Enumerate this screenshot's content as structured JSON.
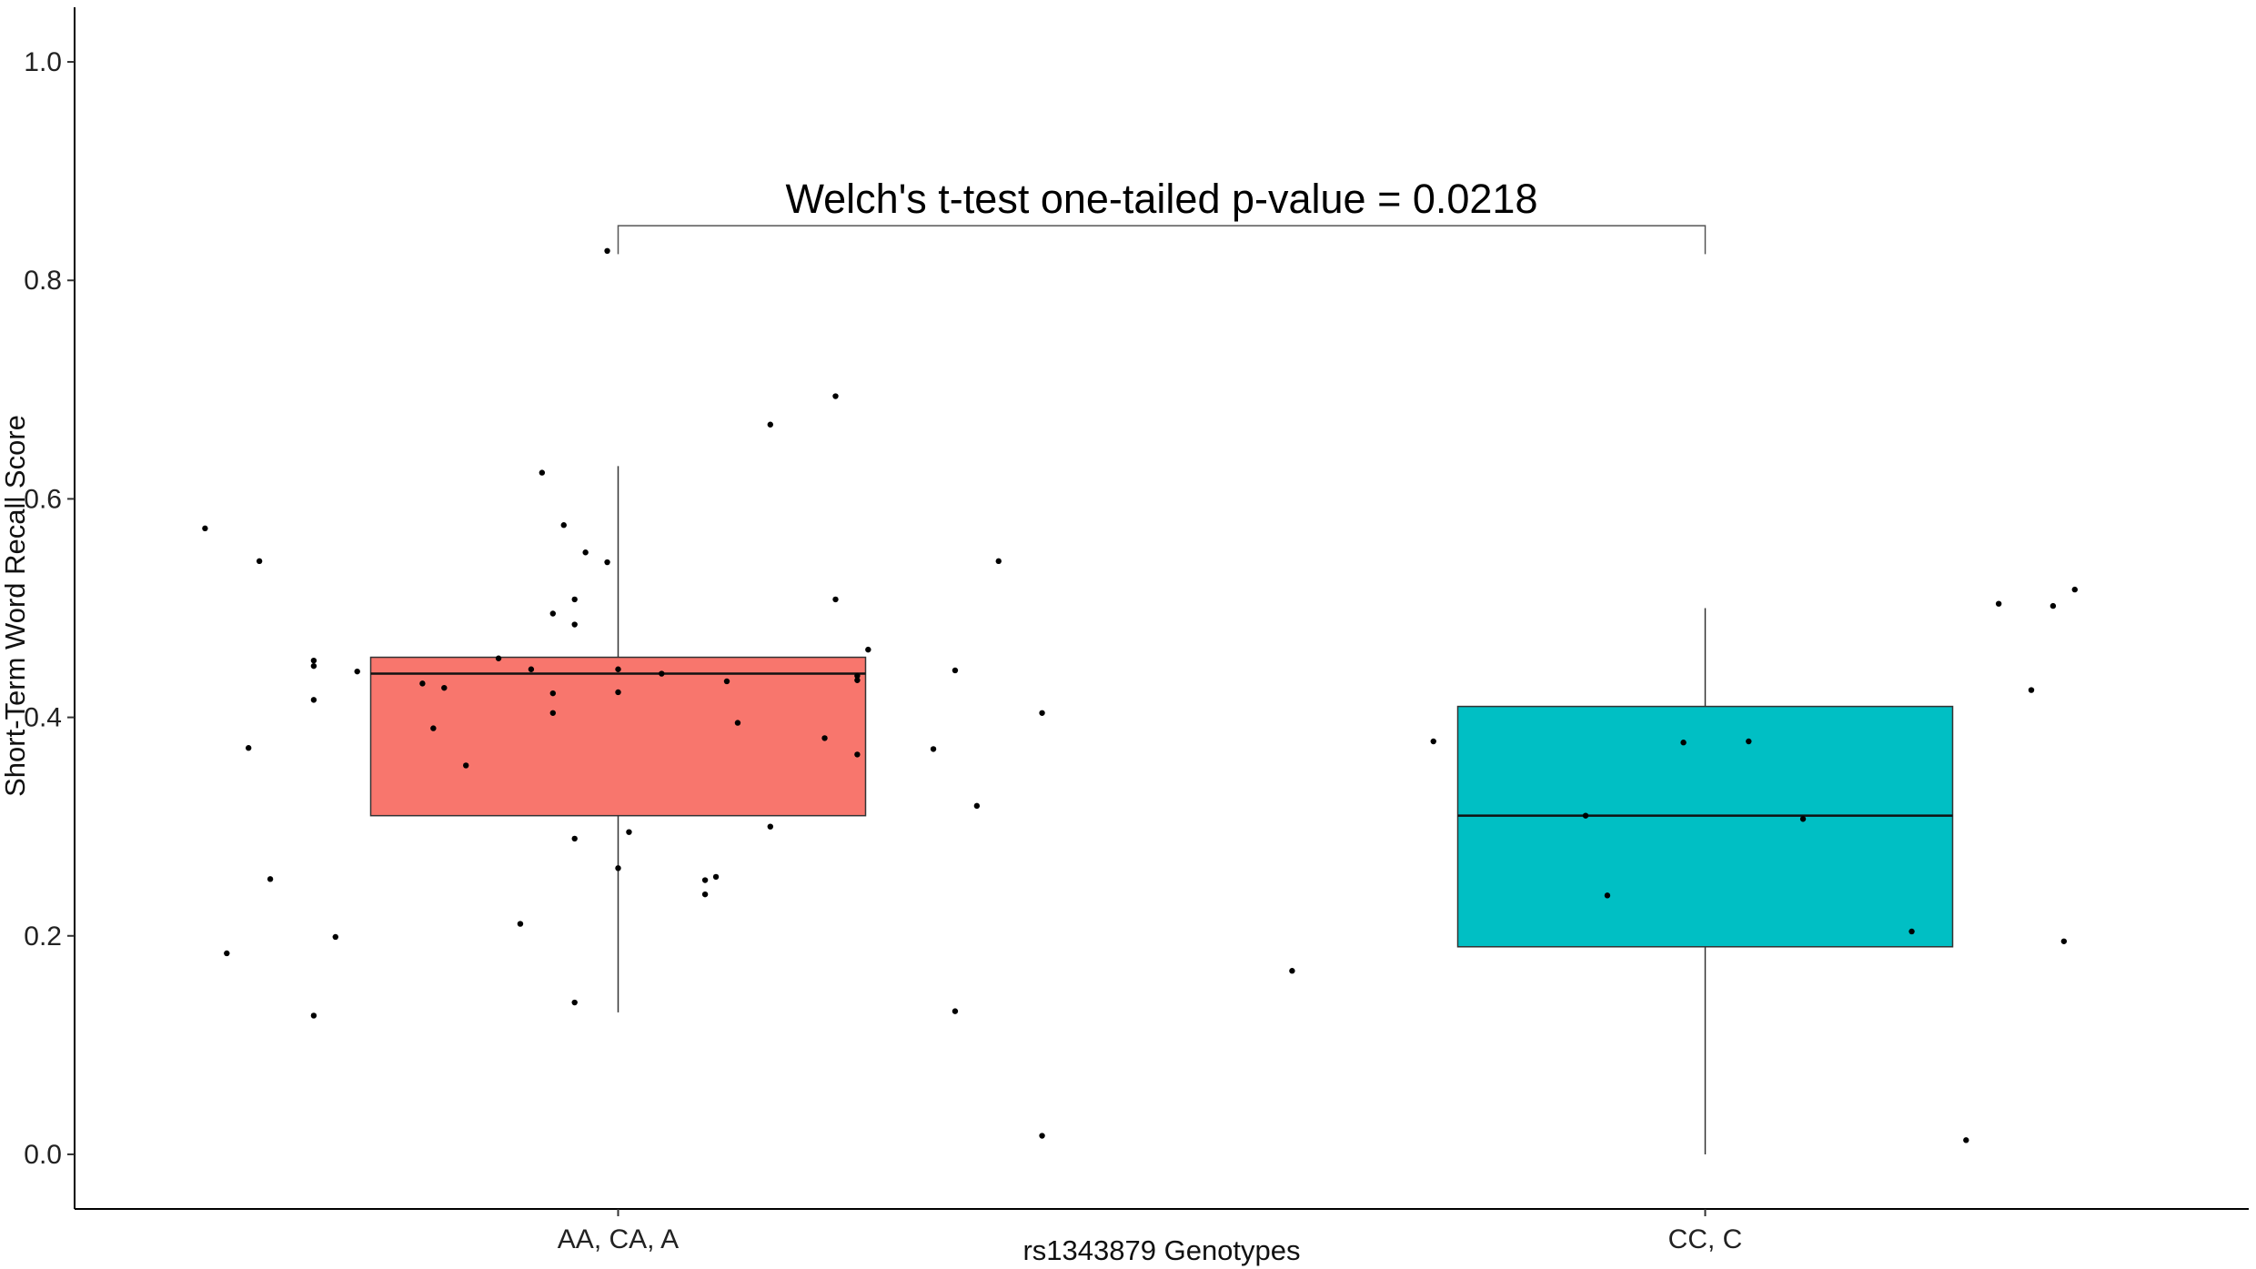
{
  "chart_data": {
    "type": "boxplot",
    "xlabel": "rs1343879 Genotypes",
    "ylabel": "Short-Term Word Recall Score",
    "ylim": [
      -0.05,
      1.05
    ],
    "yticks": [
      "0.0",
      "0.2",
      "0.4",
      "0.6",
      "0.8",
      "1.0"
    ],
    "grid": false,
    "legend": "none",
    "categories": [
      "AA, CA, A",
      "CC, C"
    ],
    "colors": [
      "#F8766D",
      "#00BFC4"
    ],
    "boxes": [
      {
        "category": "AA, CA, A",
        "whisker_low": 0.13,
        "q1": 0.31,
        "median": 0.44,
        "q3": 0.455,
        "whisker_high": 0.63
      },
      {
        "category": "CC, C",
        "whisker_low": 0.0,
        "q1": 0.19,
        "median": 0.31,
        "q3": 0.41,
        "whisker_high": 0.5
      }
    ],
    "points": [
      {
        "category": "AA, CA, A",
        "x": -0.38,
        "y": 0.573
      },
      {
        "category": "AA, CA, A",
        "x": -0.33,
        "y": 0.543
      },
      {
        "category": "AA, CA, A",
        "x": -0.34,
        "y": 0.372
      },
      {
        "category": "AA, CA, A",
        "x": -0.32,
        "y": 0.252
      },
      {
        "category": "AA, CA, A",
        "x": -0.36,
        "y": 0.184
      },
      {
        "category": "AA, CA, A",
        "x": -0.28,
        "y": 0.127
      },
      {
        "category": "AA, CA, A",
        "x": -0.28,
        "y": 0.447
      },
      {
        "category": "AA, CA, A",
        "x": -0.28,
        "y": 0.452
      },
      {
        "category": "AA, CA, A",
        "x": -0.28,
        "y": 0.416
      },
      {
        "category": "AA, CA, A",
        "x": -0.24,
        "y": 0.442
      },
      {
        "category": "AA, CA, A",
        "x": -0.26,
        "y": 0.199
      },
      {
        "category": "AA, CA, A",
        "x": -0.18,
        "y": 0.431
      },
      {
        "category": "AA, CA, A",
        "x": -0.16,
        "y": 0.427
      },
      {
        "category": "AA, CA, A",
        "x": -0.17,
        "y": 0.39
      },
      {
        "category": "AA, CA, A",
        "x": -0.14,
        "y": 0.356
      },
      {
        "category": "AA, CA, A",
        "x": -0.11,
        "y": 0.454
      },
      {
        "category": "AA, CA, A",
        "x": -0.09,
        "y": 0.211
      },
      {
        "category": "AA, CA, A",
        "x": -0.08,
        "y": 0.444
      },
      {
        "category": "AA, CA, A",
        "x": -0.07,
        "y": 0.624
      },
      {
        "category": "AA, CA, A",
        "x": -0.05,
        "y": 0.576
      },
      {
        "category": "AA, CA, A",
        "x": -0.06,
        "y": 0.495
      },
      {
        "category": "AA, CA, A",
        "x": -0.04,
        "y": 0.508
      },
      {
        "category": "AA, CA, A",
        "x": -0.04,
        "y": 0.485
      },
      {
        "category": "AA, CA, A",
        "x": -0.03,
        "y": 0.551
      },
      {
        "category": "AA, CA, A",
        "x": -0.01,
        "y": 0.542
      },
      {
        "category": "AA, CA, A",
        "x": -0.06,
        "y": 0.422
      },
      {
        "category": "AA, CA, A",
        "x": -0.06,
        "y": 0.404
      },
      {
        "category": "AA, CA, A",
        "x": -0.04,
        "y": 0.289
      },
      {
        "category": "AA, CA, A",
        "x": -0.04,
        "y": 0.139
      },
      {
        "category": "AA, CA, A",
        "x": -0.01,
        "y": 0.827
      },
      {
        "category": "AA, CA, A",
        "x": 0.0,
        "y": 0.444
      },
      {
        "category": "AA, CA, A",
        "x": 0.0,
        "y": 0.423
      },
      {
        "category": "AA, CA, A",
        "x": 0.01,
        "y": 0.295
      },
      {
        "category": "AA, CA, A",
        "x": 0.0,
        "y": 0.262
      },
      {
        "category": "AA, CA, A",
        "x": 0.04,
        "y": 0.44
      },
      {
        "category": "AA, CA, A",
        "x": 0.14,
        "y": 0.668
      },
      {
        "category": "AA, CA, A",
        "x": 0.1,
        "y": 0.433
      },
      {
        "category": "AA, CA, A",
        "x": 0.11,
        "y": 0.395
      },
      {
        "category": "AA, CA, A",
        "x": 0.14,
        "y": 0.3
      },
      {
        "category": "AA, CA, A",
        "x": 0.08,
        "y": 0.251
      },
      {
        "category": "AA, CA, A",
        "x": 0.08,
        "y": 0.238
      },
      {
        "category": "AA, CA, A",
        "x": 0.09,
        "y": 0.254
      },
      {
        "category": "AA, CA, A",
        "x": 0.2,
        "y": 0.694
      },
      {
        "category": "AA, CA, A",
        "x": 0.2,
        "y": 0.508
      },
      {
        "category": "AA, CA, A",
        "x": 0.23,
        "y": 0.462
      },
      {
        "category": "AA, CA, A",
        "x": 0.22,
        "y": 0.438
      },
      {
        "category": "AA, CA, A",
        "x": 0.22,
        "y": 0.434
      },
      {
        "category": "AA, CA, A",
        "x": 0.19,
        "y": 0.381
      },
      {
        "category": "AA, CA, A",
        "x": 0.22,
        "y": 0.366
      },
      {
        "category": "AA, CA, A",
        "x": 0.31,
        "y": 0.443
      },
      {
        "category": "AA, CA, A",
        "x": 0.29,
        "y": 0.371
      },
      {
        "category": "AA, CA, A",
        "x": 0.33,
        "y": 0.319
      },
      {
        "category": "AA, CA, A",
        "x": 0.31,
        "y": 0.131
      },
      {
        "category": "AA, CA, A",
        "x": 0.35,
        "y": 0.543
      },
      {
        "category": "AA, CA, A",
        "x": 0.39,
        "y": 0.404
      },
      {
        "category": "AA, CA, A",
        "x": 0.39,
        "y": 0.017
      },
      {
        "category": "CC, C",
        "x": -0.38,
        "y": 0.168
      },
      {
        "category": "CC, C",
        "x": -0.25,
        "y": 0.378
      },
      {
        "category": "CC, C",
        "x": -0.11,
        "y": 0.31
      },
      {
        "category": "CC, C",
        "x": -0.09,
        "y": 0.237
      },
      {
        "category": "CC, C",
        "x": -0.02,
        "y": 0.377
      },
      {
        "category": "CC, C",
        "x": 0.04,
        "y": 0.378
      },
      {
        "category": "CC, C",
        "x": 0.09,
        "y": 0.307
      },
      {
        "category": "CC, C",
        "x": 0.19,
        "y": 0.204
      },
      {
        "category": "CC, C",
        "x": 0.24,
        "y": 0.013
      },
      {
        "category": "CC, C",
        "x": 0.27,
        "y": 0.504
      },
      {
        "category": "CC, C",
        "x": 0.3,
        "y": 0.425
      },
      {
        "category": "CC, C",
        "x": 0.32,
        "y": 0.502
      },
      {
        "category": "CC, C",
        "x": 0.33,
        "y": 0.195
      },
      {
        "category": "CC, C",
        "x": 0.34,
        "y": 0.517
      }
    ],
    "annotation": {
      "text": "Welch's t-test one-tailed p-value = 0.0218",
      "from": "AA, CA, A",
      "to": "CC, C",
      "y_bracket": 0.85,
      "y_tip": 0.824
    }
  }
}
